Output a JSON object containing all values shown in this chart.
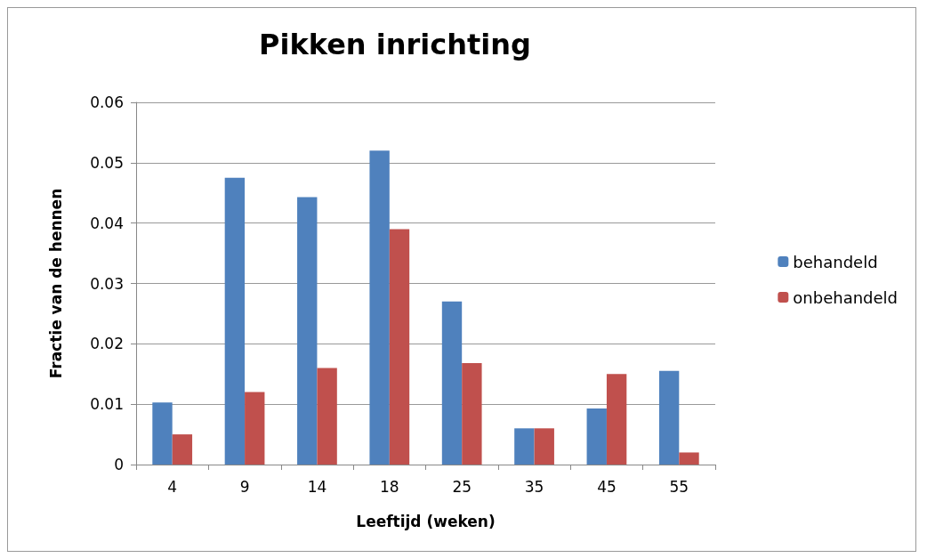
{
  "chart_data": {
    "type": "bar",
    "title": "Pikken inrichting",
    "xlabel": "Leeftijd (weken)",
    "ylabel": "Fractie van de hennen",
    "categories": [
      "4",
      "9",
      "14",
      "18",
      "25",
      "35",
      "45",
      "55"
    ],
    "series": [
      {
        "name": "behandeld",
        "color": "#4f81bd",
        "values": [
          0.0103,
          0.0475,
          0.0443,
          0.052,
          0.027,
          0.006,
          0.0093,
          0.0155
        ]
      },
      {
        "name": "onbehandeld",
        "color": "#c0504d",
        "values": [
          0.005,
          0.012,
          0.016,
          0.039,
          0.0168,
          0.006,
          0.015,
          0.002
        ]
      }
    ],
    "ylim": [
      0,
      0.06
    ],
    "yticks": [
      0,
      0.01,
      0.02,
      0.03,
      0.04,
      0.05,
      0.06
    ],
    "grid": "y",
    "legend": "right"
  }
}
